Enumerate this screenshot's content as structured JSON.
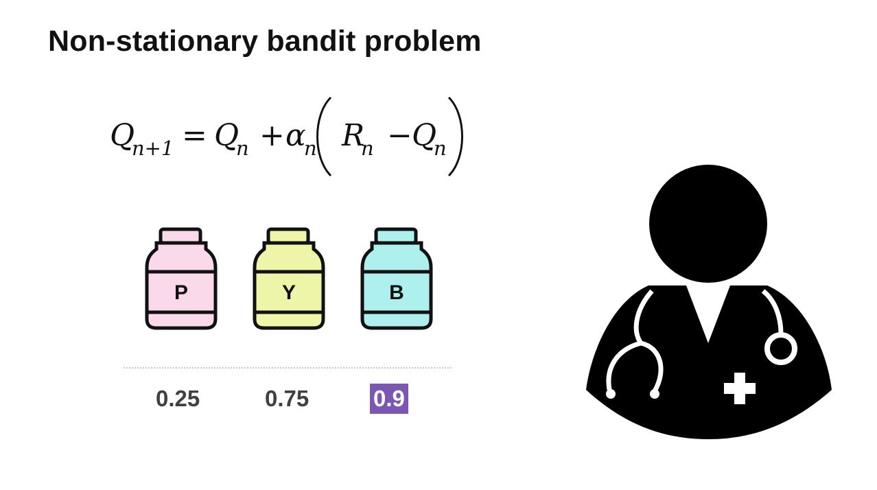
{
  "slide": {
    "title": "Non-stationary bandit problem"
  },
  "equation": {
    "lhs_symbol": "Q",
    "lhs_subscript": "n+1",
    "equals": "=",
    "term1_symbol": "Q",
    "term1_subscript": "n",
    "plus": "+",
    "alpha_symbol": "α",
    "alpha_subscript": "n",
    "reward_symbol": "R",
    "reward_subscript": "n",
    "minus": "−",
    "term2_symbol": "Q",
    "term2_subscript": "n"
  },
  "bottles": [
    {
      "label": "P",
      "color": "#f9d9ea",
      "probability": "0.25",
      "highlighted": false
    },
    {
      "label": "Y",
      "color": "#eef5a8",
      "probability": "0.75",
      "highlighted": false
    },
    {
      "label": "B",
      "color": "#aef0ee",
      "probability": "0.9",
      "highlighted": true
    }
  ],
  "colors": {
    "highlight": "#7b56b5",
    "title_text": "#111111",
    "probability_text": "#404040"
  },
  "icons": {
    "bottle_icon": "medicine-bottle-icon",
    "doctor_icon": "doctor-with-stethoscope-icon"
  }
}
